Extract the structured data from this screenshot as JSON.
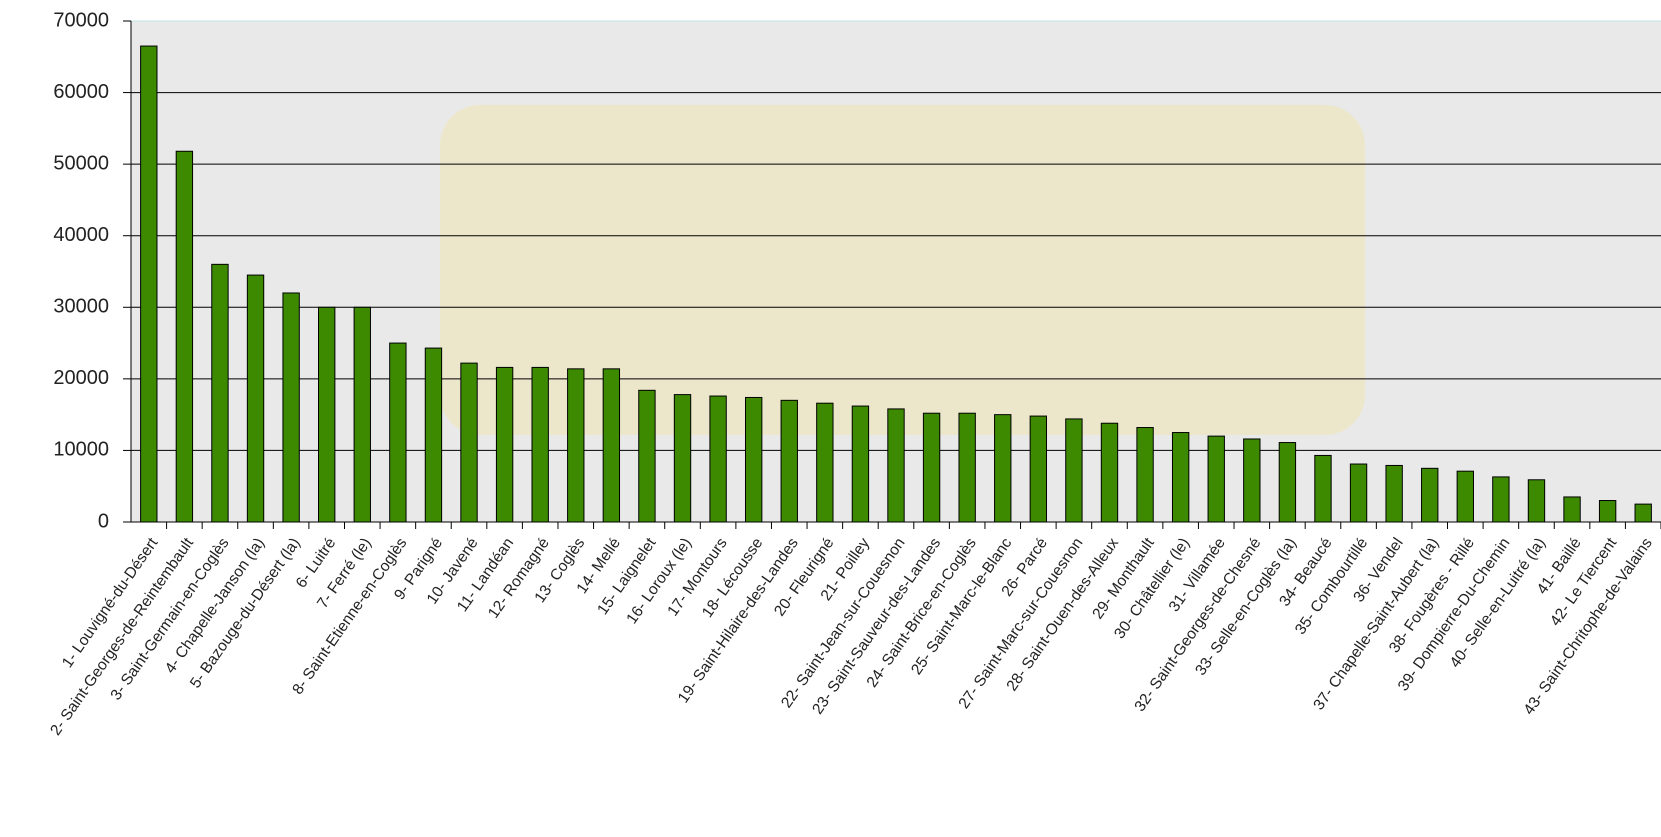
{
  "chart_data": {
    "type": "bar",
    "categories": [
      "1- Louvigné-du-Désert",
      "2- Saint-Georges-de-Reintembault",
      "3- Saint-Germain-en-Coglès",
      "4- Chapelle-Janson (la)",
      "5- Bazouge-du-Désert (la)",
      "6- Luitré",
      "7- Ferré (le)",
      "8- Saint-Etienne-en-Coglès",
      "9- Parigné",
      "10- Javené",
      "11- Landéan",
      "12- Romagné",
      "13- Coglès",
      "14- Mellé",
      "15- Laignelet",
      "16- Loroux (le)",
      "17- Montours",
      "18- Lécousse",
      "19- Saint-Hilaire-des-Landes",
      "20- Fleurigné",
      "21- Poilley",
      "22- Saint-Jean-sur-Couesnon",
      "23- Saint-Sauveur-des-Landes",
      "24- Saint-Brice-en-Coglès",
      "25- Saint-Marc-le-Blanc",
      "26- Parcé",
      "27- Saint-Marc-sur-Couesnon",
      "28- Saint-Ouen-des-Alleux",
      "29- Monthault",
      "30- Châtellier (le)",
      "31- Villamée",
      "32- Saint-Georges-de-Chesné",
      "33- Selle-en-Coglès (la)",
      "34- Beaucé",
      "35- Combourtillé",
      "36- Vendel",
      "37- Chapelle-Saint-Aubert (la)",
      "38- Fougères - Rillé",
      "39- Dompierre-Du-Chemin",
      "40- Selle-en-Luitré (la)",
      "41- Baillé",
      "42- Le Tiercent",
      "43- Saint-Chritophe-de-Valains"
    ],
    "values": [
      66500,
      51800,
      36000,
      34500,
      32000,
      30000,
      30000,
      25000,
      24300,
      22200,
      21600,
      21600,
      21400,
      21400,
      18400,
      17800,
      17600,
      17400,
      17000,
      16600,
      16200,
      15800,
      15200,
      15200,
      15000,
      14800,
      14400,
      13800,
      13200,
      12500,
      12000,
      11600,
      11100,
      9300,
      8100,
      7900,
      7500,
      7100,
      6300,
      5900,
      3500,
      3000,
      2500
    ],
    "color": "#3d8a00",
    "ylim": [
      0,
      70000
    ],
    "yticks": [
      0,
      10000,
      20000,
      30000,
      40000,
      50000,
      60000,
      70000
    ],
    "grid": true
  }
}
